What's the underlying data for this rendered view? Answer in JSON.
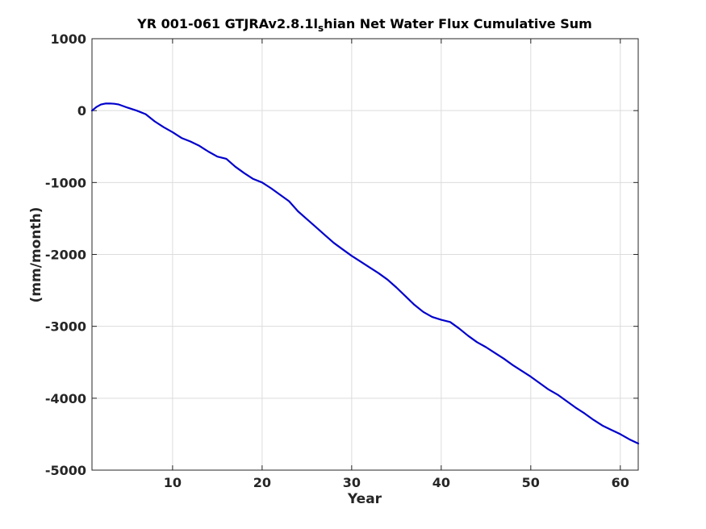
{
  "chart_data": {
    "type": "line",
    "title_prefix": "YR 001-061 GTJRAv2.8.1l",
    "title_subscript": "s",
    "title_suffix": "hian Net Water Flux Cumulative Sum",
    "xlabel": "Year",
    "ylabel": "(mm/month)",
    "xlim": [
      1,
      62
    ],
    "ylim": [
      -5000,
      1000
    ],
    "xticks": [
      10,
      20,
      30,
      40,
      50,
      60
    ],
    "yticks": [
      1000,
      0,
      -1000,
      -2000,
      -3000,
      -4000,
      -5000
    ],
    "grid": true,
    "series": [
      {
        "color": "#0000cc",
        "x": [
          1,
          1.5,
          2,
          2.5,
          3,
          3.5,
          4,
          5,
          6,
          7,
          8,
          9,
          10,
          11,
          12,
          13,
          14,
          15,
          16,
          17,
          18,
          19,
          20,
          21,
          22,
          23,
          24,
          25,
          26,
          27,
          28,
          29,
          30,
          31,
          32,
          33,
          34,
          35,
          36,
          37,
          38,
          39,
          40,
          41,
          42,
          43,
          44,
          45,
          46,
          47,
          48,
          49,
          50,
          51,
          52,
          53,
          54,
          55,
          56,
          57,
          58,
          59,
          60,
          61,
          62
        ],
        "y": [
          0,
          50,
          85,
          98,
          100,
          95,
          85,
          40,
          0,
          -50,
          -150,
          -230,
          -300,
          -380,
          -430,
          -490,
          -570,
          -640,
          -670,
          -780,
          -870,
          -950,
          -1000,
          -1080,
          -1170,
          -1260,
          -1400,
          -1510,
          -1620,
          -1730,
          -1840,
          -1930,
          -2020,
          -2100,
          -2180,
          -2260,
          -2350,
          -2460,
          -2580,
          -2700,
          -2800,
          -2870,
          -2910,
          -2940,
          -3030,
          -3130,
          -3220,
          -3290,
          -3370,
          -3450,
          -3540,
          -3620,
          -3700,
          -3790,
          -3880,
          -3950,
          -4040,
          -4130,
          -4210,
          -4300,
          -4380,
          -4440,
          -4500,
          -4570,
          -4630
        ]
      }
    ]
  }
}
